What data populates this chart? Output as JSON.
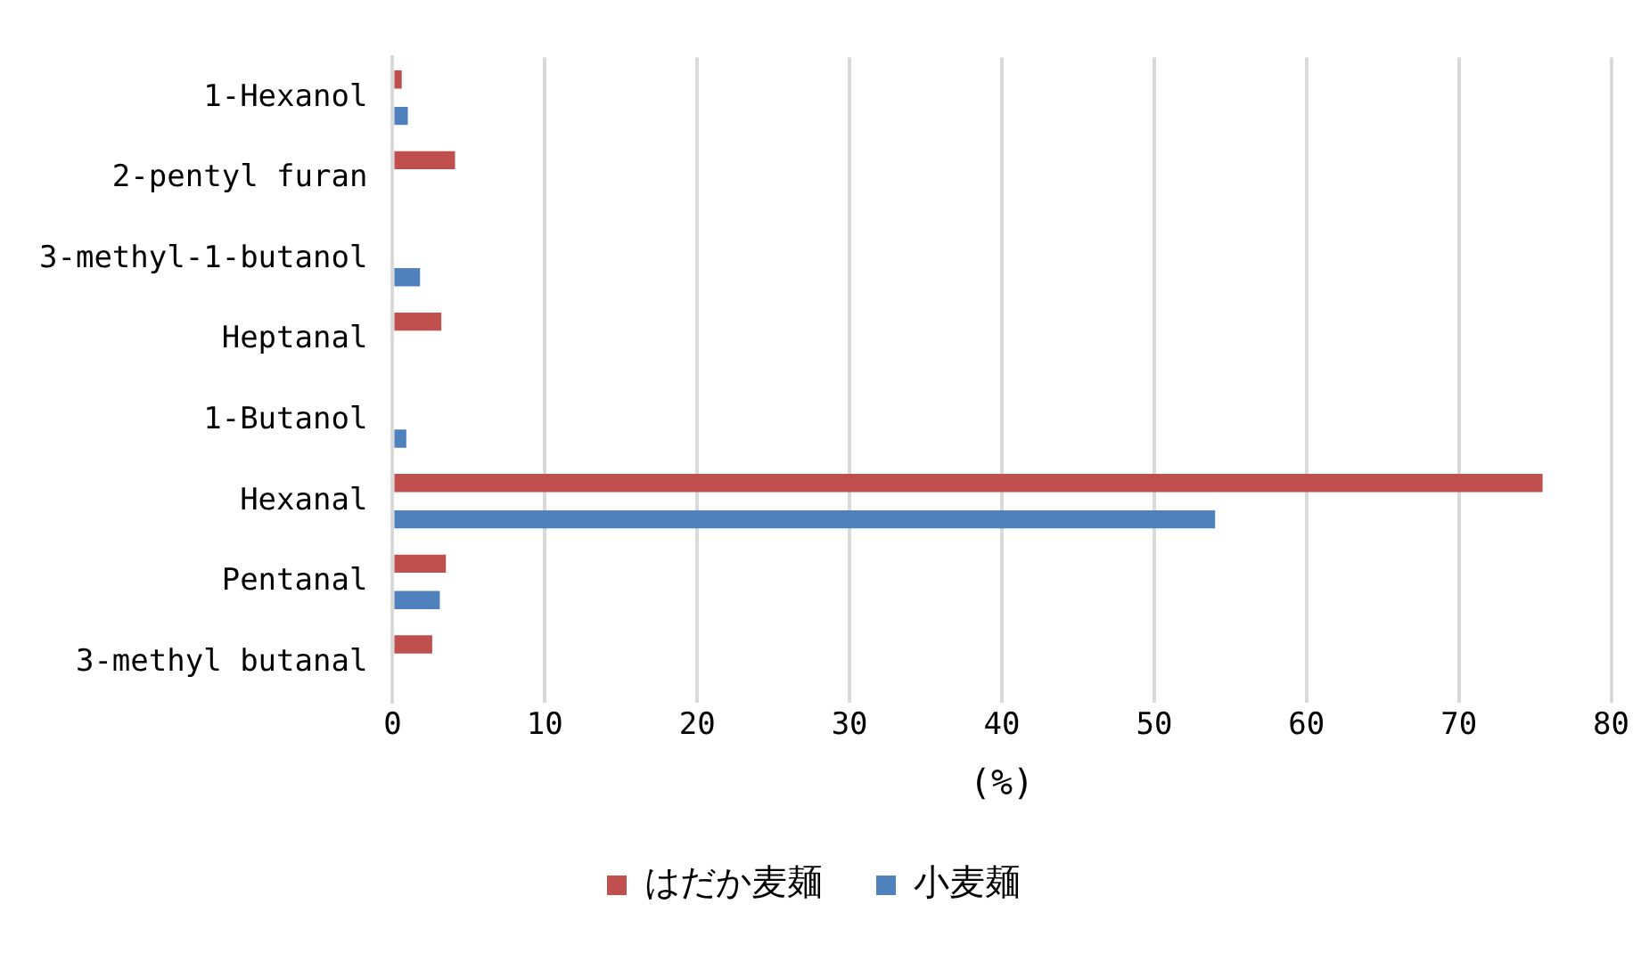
{
  "chart_data": {
    "type": "bar",
    "orientation": "horizontal",
    "xlabel": "(%)",
    "categories": [
      "1-Hexanol",
      "2-pentyl furan",
      "3-methyl-1-butanol",
      "Heptanal",
      "1-Butanol",
      "Hexanal",
      "Pentanal",
      "3-methyl butanal"
    ],
    "series": [
      {
        "name": "はだか麦麺",
        "color": "#c0504d",
        "values": [
          0.6,
          4.1,
          null,
          3.2,
          null,
          75.5,
          3.5,
          2.6
        ]
      },
      {
        "name": "小麦麺",
        "color": "#4f81bd",
        "values": [
          1.0,
          null,
          1.8,
          null,
          0.9,
          54.0,
          3.1,
          null
        ]
      }
    ],
    "xlim": [
      0,
      80
    ],
    "xticks": [
      0,
      10,
      20,
      30,
      40,
      50,
      60,
      70,
      80
    ],
    "grid": "x",
    "legend": "bottom"
  }
}
